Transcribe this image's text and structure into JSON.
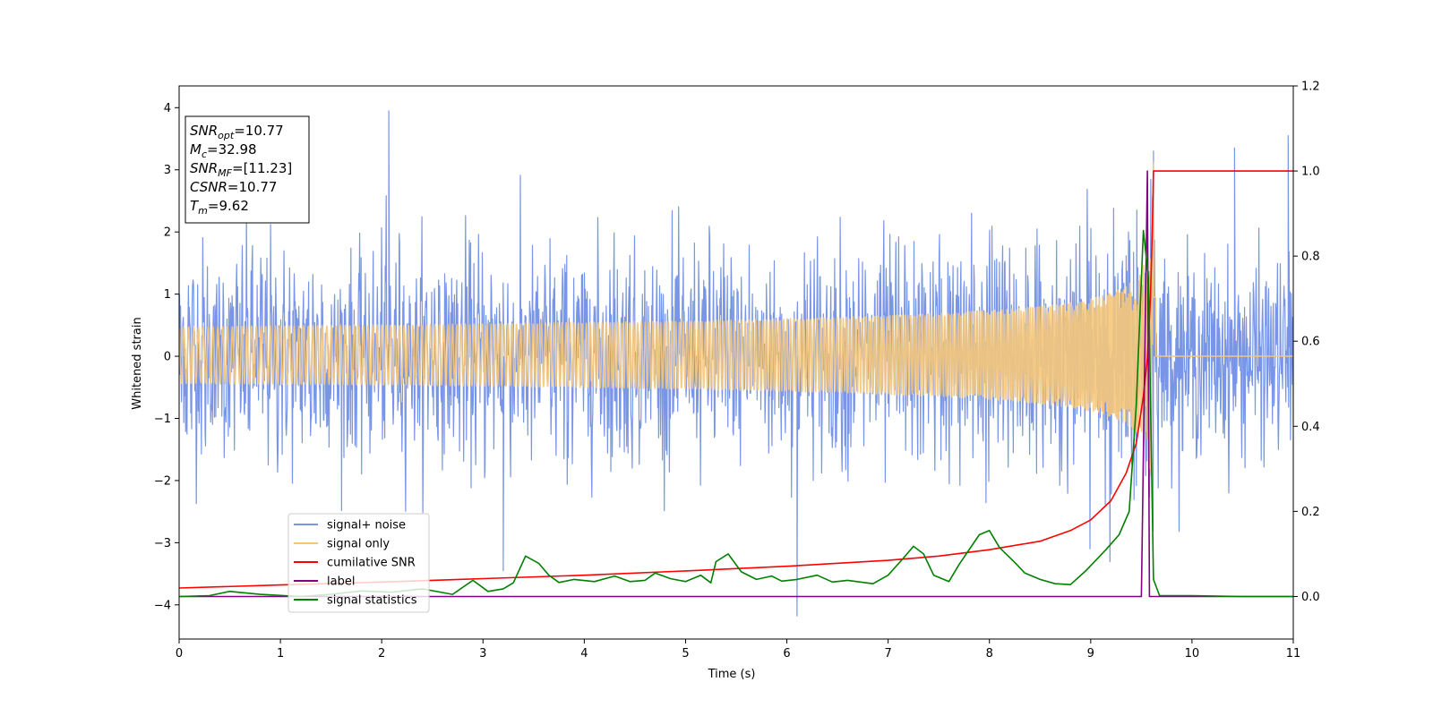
{
  "chart_data": {
    "type": "line",
    "xlabel": "Time (s)",
    "ylabel_left": "Whitened strain",
    "ylabel_right": "",
    "xlim": [
      0,
      11
    ],
    "ylim_left": [
      -4.55,
      4.35
    ],
    "ylim_right": [
      -0.1,
      1.2
    ],
    "x_ticks": [
      0,
      1,
      2,
      3,
      4,
      5,
      6,
      7,
      8,
      9,
      10,
      11
    ],
    "y_ticks_left": [
      -4,
      -3,
      -2,
      -1,
      0,
      1,
      2,
      3,
      4
    ],
    "y_tick_labels_left": [
      "−4",
      "−3",
      "−2",
      "−1",
      "0",
      "1",
      "2",
      "3",
      "4"
    ],
    "y_ticks_right": [
      0.0,
      0.2,
      0.4,
      0.6,
      0.8,
      1.0,
      1.2
    ],
    "y_tick_labels_right": [
      "0.0",
      "0.2",
      "0.4",
      "0.6",
      "0.8",
      "1.0",
      "1.2"
    ],
    "grid": false,
    "legend_position": "lower-left",
    "annotation": {
      "lines": [
        {
          "base": "SNR",
          "sub": "opt",
          "rest": "=10.77"
        },
        {
          "base": "M",
          "sub": "c",
          "rest": "=32.98"
        },
        {
          "base": "SNR",
          "sub": "MF",
          "rest": "=[11.23]"
        },
        {
          "base": "CSNR",
          "sub": "",
          "rest": "=10.77"
        },
        {
          "base": "T",
          "sub": "m",
          "rest": "=9.62"
        }
      ]
    },
    "series": [
      {
        "name": "signal+ noise",
        "axis": "left",
        "color": "#7895e8",
        "kind": "noise",
        "noise_sigma": 0.75,
        "notable_spikes": [
          [
            2.07,
            3.95
          ],
          [
            6.1,
            -4.18
          ],
          [
            10.42,
            3.35
          ],
          [
            10.95,
            3.55
          ],
          [
            3.2,
            -3.45
          ],
          [
            9.62,
            3.3
          ]
        ]
      },
      {
        "name": "signal only",
        "axis": "left",
        "color": "#f5c67a",
        "kind": "chirp",
        "merger_time": 9.62,
        "peak_amplitude": 3.2
      },
      {
        "name": "cumilative SNR",
        "axis": "right",
        "color": "#ff0000",
        "x": [
          0,
          1,
          2,
          3,
          4,
          5,
          6,
          7,
          7.5,
          8,
          8.5,
          8.8,
          9.0,
          9.2,
          9.35,
          9.45,
          9.52,
          9.56,
          9.59,
          9.61,
          9.62,
          11
        ],
        "y": [
          0.02,
          0.027,
          0.034,
          0.042,
          0.05,
          0.06,
          0.071,
          0.085,
          0.095,
          0.11,
          0.13,
          0.155,
          0.18,
          0.225,
          0.29,
          0.36,
          0.47,
          0.56,
          0.7,
          0.88,
          1.0,
          1.0
        ]
      },
      {
        "name": "label",
        "axis": "right",
        "color": "#800080",
        "x": [
          0,
          9.5,
          9.56,
          9.58,
          11
        ],
        "y": [
          0,
          0,
          1.0,
          0,
          0
        ]
      },
      {
        "name": "signal statistics",
        "axis": "right",
        "color": "#008000",
        "x": [
          0,
          0.3,
          0.5,
          0.8,
          1.2,
          1.5,
          1.8,
          2.1,
          2.4,
          2.7,
          2.9,
          3.05,
          3.2,
          3.3,
          3.42,
          3.55,
          3.65,
          3.75,
          3.9,
          4.1,
          4.3,
          4.45,
          4.6,
          4.7,
          4.85,
          5.0,
          5.15,
          5.25,
          5.3,
          5.42,
          5.55,
          5.7,
          5.85,
          5.95,
          6.1,
          6.3,
          6.45,
          6.6,
          6.85,
          7.0,
          7.15,
          7.25,
          7.35,
          7.45,
          7.6,
          7.7,
          7.9,
          8.0,
          8.1,
          8.25,
          8.35,
          8.5,
          8.65,
          8.8,
          8.95,
          9.05,
          9.15,
          9.28,
          9.38,
          9.45,
          9.52,
          9.57,
          9.62,
          9.68,
          9.8,
          10.0,
          10.5,
          11
        ],
        "y": [
          0.0,
          0.002,
          0.012,
          0.005,
          0.0,
          0.005,
          0.013,
          0.01,
          0.018,
          0.005,
          0.038,
          0.012,
          0.018,
          0.032,
          0.095,
          0.078,
          0.05,
          0.033,
          0.04,
          0.035,
          0.048,
          0.035,
          0.038,
          0.055,
          0.042,
          0.035,
          0.05,
          0.032,
          0.082,
          0.1,
          0.058,
          0.04,
          0.048,
          0.036,
          0.04,
          0.05,
          0.034,
          0.038,
          0.03,
          0.05,
          0.09,
          0.118,
          0.1,
          0.05,
          0.035,
          0.075,
          0.145,
          0.155,
          0.115,
          0.08,
          0.055,
          0.04,
          0.03,
          0.028,
          0.06,
          0.085,
          0.11,
          0.145,
          0.2,
          0.45,
          0.86,
          0.75,
          0.04,
          0.002,
          0.002,
          0.002,
          0.0,
          0.0
        ]
      }
    ]
  }
}
